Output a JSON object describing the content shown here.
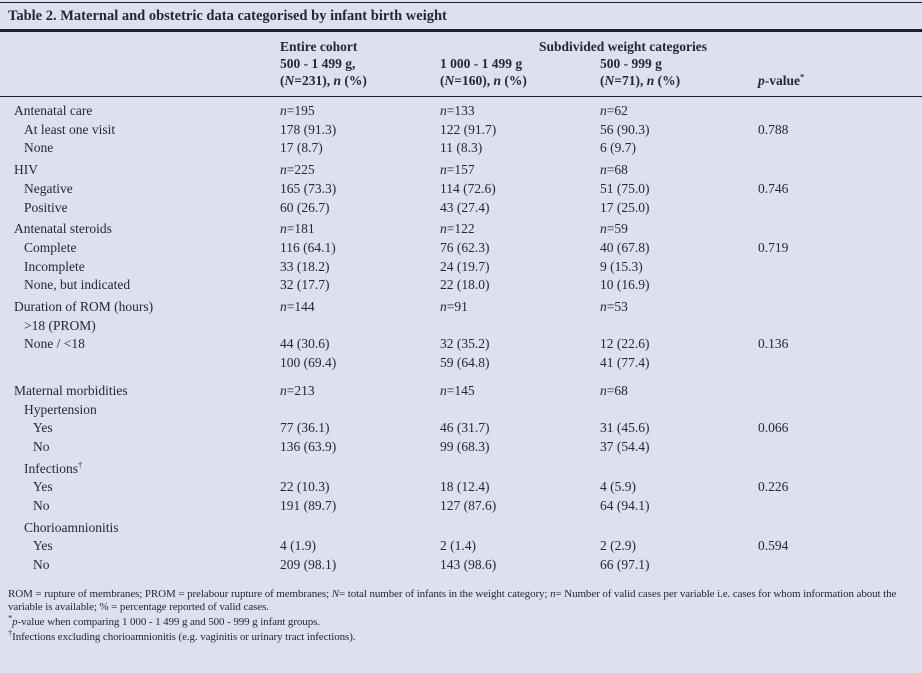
{
  "title": "Table 2. Maternal and obstetric data categorised by infant birth weight",
  "colors": {
    "background": "#dce1ed",
    "text": "#222839",
    "rule": "#1a2030"
  },
  "table": {
    "header": {
      "entire_cohort": "Entire cohort",
      "subdivided": "Subdivided weight categories",
      "col1_range": "500 - 1 499 g,",
      "col1_n": "(_N_=231), _n_ (%)",
      "col2_range": "1 000 - 1 499 g",
      "col2_n": "(_N_=160), _n_ (%)",
      "col3_range": "500 - 999 g",
      "col3_n": "(_N_=71), _n_ (%)",
      "pvalue": "_p_-value^*^"
    },
    "rows": [
      {
        "label": "Antenatal care",
        "ind": 0,
        "g": 0,
        "c": [
          "_n_=195",
          "_n_=133",
          "_n_=62"
        ],
        "p": ""
      },
      {
        "label": "At least one visit",
        "ind": 1,
        "g": 0,
        "c": [
          "178 (91.3)",
          "122 (91.7)",
          "56 (90.3)"
        ],
        "p": "0.788"
      },
      {
        "label": "None",
        "ind": 1,
        "g": 0,
        "c": [
          "17 (8.7)",
          "11 (8.3)",
          "6 (9.7)"
        ],
        "p": ""
      },
      {
        "label": "HIV",
        "ind": 0,
        "g": 1,
        "c": [
          "_n_=225",
          "_n_=157",
          "_n_=68"
        ],
        "p": ""
      },
      {
        "label": "Negative",
        "ind": 1,
        "g": 0,
        "c": [
          "165 (73.3)",
          "114 (72.6)",
          "51 (75.0)"
        ],
        "p": "0.746"
      },
      {
        "label": "Positive",
        "ind": 1,
        "g": 0,
        "c": [
          "60 (26.7)",
          "43 (27.4)",
          "17 (25.0)"
        ],
        "p": ""
      },
      {
        "label": "Antenatal steroids",
        "ind": 0,
        "g": 1,
        "c": [
          "_n_=181",
          "_n_=122",
          "_n_=59"
        ],
        "p": ""
      },
      {
        "label": "Complete",
        "ind": 1,
        "g": 0,
        "c": [
          "116 (64.1)",
          "76 (62.3)",
          "40 (67.8)"
        ],
        "p": "0.719"
      },
      {
        "label": "Incomplete",
        "ind": 1,
        "g": 0,
        "c": [
          "33 (18.2)",
          "24 (19.7)",
          "9 (15.3)"
        ],
        "p": ""
      },
      {
        "label": "None, but indicated",
        "ind": 1,
        "g": 0,
        "c": [
          "32 (17.7)",
          "22 (18.0)",
          "10 (16.9)"
        ],
        "p": ""
      },
      {
        "label": "Duration of ROM (hours)",
        "ind": 0,
        "g": 1,
        "c": [
          "_n_=144",
          "_n_=91",
          "_n_=53"
        ],
        "p": ""
      },
      {
        "label": ">18 (PROM)",
        "ind": 1,
        "g": 0,
        "c": [
          "",
          "",
          ""
        ],
        "p": ""
      },
      {
        "label": "None / <18",
        "ind": 1,
        "g": 0,
        "c": [
          "44 (30.6)",
          "32 (35.2)",
          "12 (22.6)"
        ],
        "p": "0.136"
      },
      {
        "label": "",
        "ind": 1,
        "g": 0,
        "c": [
          "100 (69.4)",
          "59 (64.8)",
          "41 (77.4)"
        ],
        "p": ""
      },
      {
        "label": "Maternal morbidities",
        "ind": 0,
        "g": 2,
        "c": [
          "_n_=213",
          "_n_=145",
          "_n_=68"
        ],
        "p": ""
      },
      {
        "label": "Hypertension",
        "ind": 1,
        "g": 0,
        "c": [
          "",
          "",
          ""
        ],
        "p": ""
      },
      {
        "label": "Yes",
        "ind": 2,
        "g": 0,
        "c": [
          "77 (36.1)",
          "46 (31.7)",
          "31 (45.6)"
        ],
        "p": "0.066"
      },
      {
        "label": "No",
        "ind": 2,
        "g": 0,
        "c": [
          "136 (63.9)",
          "99 (68.3)",
          "37 (54.4)"
        ],
        "p": ""
      },
      {
        "label": "Infections^†^",
        "ind": 1,
        "g": 1,
        "c": [
          "",
          "",
          ""
        ],
        "p": ""
      },
      {
        "label": "Yes",
        "ind": 2,
        "g": 0,
        "c": [
          "22 (10.3)",
          "18 (12.4)",
          "4 (5.9)"
        ],
        "p": "0.226"
      },
      {
        "label": "No",
        "ind": 2,
        "g": 0,
        "c": [
          "191 (89.7)",
          "127 (87.6)",
          "64 (94.1)"
        ],
        "p": ""
      },
      {
        "label": "Chorioamnionitis",
        "ind": 1,
        "g": 1,
        "c": [
          "",
          "",
          ""
        ],
        "p": ""
      },
      {
        "label": "Yes",
        "ind": 2,
        "g": 0,
        "c": [
          "4 (1.9)",
          "2 (1.4)",
          "2 (2.9)"
        ],
        "p": "0.594"
      },
      {
        "label": "No",
        "ind": 2,
        "g": 0,
        "c": [
          "209 (98.1)",
          "143 (98.6)",
          "66 (97.1)"
        ],
        "p": ""
      }
    ]
  },
  "footnotes": {
    "general": "ROM = rupture of membranes; PROM = prelabour rupture of membranes; _N_= total number of infants in the weight category; _n_= Number of valid cases per variable i.e. cases for whom information about the variable is available; % = percentage reported of valid cases.",
    "asterisk": "^*^_p_-value when comparing 1 000 - 1 499 g and 500 - 999 g infant groups.",
    "dagger": "^†^Infections excluding chorioamnionitis (e.g. vaginitis or urinary tract infections)."
  }
}
